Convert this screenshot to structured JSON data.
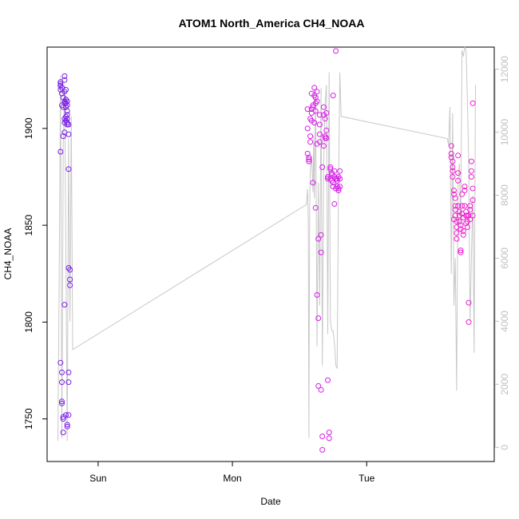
{
  "chart_data": {
    "type": "scatter",
    "title": "ATOM1 North_America CH4_NOAA",
    "xlabel": "Date",
    "ylabel": "CH4_NOAA",
    "x_ticks": [
      "Sun",
      "Mon",
      "Tue"
    ],
    "x_tick_positions": [
      1.0,
      2.0,
      3.0
    ],
    "xlim": [
      0.62,
      3.95
    ],
    "ylim": [
      1728,
      1942
    ],
    "y_ticks": [
      1750,
      1800,
      1850,
      1900
    ],
    "y2_ticks": [
      0,
      2000,
      4000,
      6000,
      8000,
      10000,
      12000
    ],
    "y2lim": [
      -450,
      12700
    ],
    "grid": false,
    "colors": {
      "axes": "#000000",
      "altitude_line": "#c8c8c8",
      "right_axis": "#bfbfbf",
      "cluster1_points": "#7a1ee6",
      "cluster2_points": "#d61ee6",
      "cluster3_points": "#f01ed0"
    },
    "series": [
      {
        "type": "scatter",
        "x": [
          0.72,
          0.72,
          0.72,
          0.73,
          0.72,
          0.73,
          0.73,
          0.72,
          0.72,
          0.73,
          0.73,
          0.73,
          0.73,
          0.74,
          0.74,
          0.74,
          0.75,
          0.75,
          0.75,
          0.76,
          0.75,
          0.76,
          0.76,
          0.76,
          0.77,
          0.77,
          0.77,
          0.77,
          0.77,
          0.76,
          0.76,
          0.75,
          0.75,
          0.74,
          0.74,
          0.74,
          0.75,
          0.75,
          0.75,
          0.77,
          0.77,
          0.78,
          0.78,
          0.78,
          0.78,
          0.79,
          0.79,
          0.79,
          0.78,
          0.78,
          0.78,
          0.77,
          0.76,
          0.77
        ],
        "y": [
          1924,
          1923,
          1922,
          1921,
          1920,
          1918,
          1912,
          1888,
          1779,
          1774,
          1769,
          1758,
          1759,
          1751,
          1750,
          1743,
          1809,
          1927,
          1925,
          1920,
          1919,
          1915,
          1913,
          1911,
          1914,
          1912,
          1909,
          1907,
          1905,
          1906,
          1904,
          1903,
          1898,
          1896,
          1911,
          1916,
          1913,
          1914,
          1905,
          1903,
          1902,
          1902,
          1897,
          1879,
          1828,
          1827,
          1822,
          1819,
          1774,
          1769,
          1752,
          1746,
          1752,
          1747
        ]
      },
      {
        "type": "scatter",
        "x": [
          2.56,
          2.56,
          2.56,
          2.57,
          2.57,
          2.57,
          2.58,
          2.58,
          2.58,
          2.59,
          2.59,
          2.59,
          2.59,
          2.6,
          2.6,
          2.6,
          2.61,
          2.61,
          2.61,
          2.62,
          2.62,
          2.62,
          2.62,
          2.63,
          2.63,
          2.63,
          2.63,
          2.64,
          2.64,
          2.64,
          2.65,
          2.65,
          2.65,
          2.65,
          2.66,
          2.66,
          2.66,
          2.67,
          2.67,
          2.67,
          2.68,
          2.68,
          2.68,
          2.69,
          2.69,
          2.69,
          2.7,
          2.7,
          2.7,
          2.71,
          2.71,
          2.71,
          2.72,
          2.72,
          2.73,
          2.73,
          2.73,
          2.74,
          2.74,
          2.74,
          2.75,
          2.75,
          2.75,
          2.76,
          2.76,
          2.76,
          2.77,
          2.77,
          2.77,
          2.78,
          2.78,
          2.78,
          2.79,
          2.79,
          2.79,
          2.8,
          2.8,
          2.8
        ],
        "y": [
          1910,
          1900,
          1887,
          1884,
          1885,
          1883,
          1896,
          1893,
          1905,
          1910,
          1908,
          1904,
          1918,
          1911,
          1912,
          1872,
          1921,
          1917,
          1903,
          1916,
          1913,
          1909,
          1859,
          1919,
          1914,
          1892,
          1814,
          1802,
          1767,
          1843,
          1907,
          1902,
          1897,
          1893,
          1845,
          1836,
          1765,
          1741,
          1734,
          1880,
          1907,
          1911,
          1891,
          1895,
          1905,
          1896,
          1899,
          1908,
          1895,
          1875,
          1874,
          1770,
          1743,
          1740,
          1874,
          1879,
          1880,
          1876,
          1877,
          1873,
          1872,
          1870,
          1917,
          1878,
          1875,
          1861,
          1869,
          1874,
          1940,
          1873,
          1874,
          1870,
          1868,
          1869,
          1875,
          1874,
          1870,
          1878
        ]
      },
      {
        "type": "scatter",
        "x": [
          3.63,
          3.63,
          3.63,
          3.64,
          3.64,
          3.64,
          3.64,
          3.65,
          3.65,
          3.65,
          3.66,
          3.66,
          3.66,
          3.66,
          3.67,
          3.67,
          3.67,
          3.67,
          3.68,
          3.68,
          3.68,
          3.68,
          3.69,
          3.69,
          3.69,
          3.7,
          3.7,
          3.7,
          3.7,
          3.71,
          3.71,
          3.71,
          3.72,
          3.72,
          3.72,
          3.73,
          3.73,
          3.73,
          3.74,
          3.74,
          3.74,
          3.75,
          3.75,
          3.75,
          3.76,
          3.76,
          3.76,
          3.77,
          3.77,
          3.77,
          3.78,
          3.78,
          3.78,
          3.79,
          3.79,
          3.79,
          3.79
        ],
        "y": [
          1891,
          1887,
          1885,
          1883,
          1880,
          1878,
          1875,
          1853,
          1868,
          1866,
          1864,
          1860,
          1858,
          1855,
          1852,
          1849,
          1846,
          1843,
          1886,
          1877,
          1873,
          1860,
          1857,
          1855,
          1852,
          1850,
          1848,
          1837,
          1836,
          1866,
          1860,
          1856,
          1854,
          1847,
          1845,
          1870,
          1868,
          1860,
          1857,
          1855,
          1851,
          1855,
          1852,
          1849,
          1810,
          1800,
          1855,
          1860,
          1858,
          1853,
          1883,
          1878,
          1875,
          1869,
          1863,
          1855,
          1913
        ]
      },
      {
        "type": "line",
        "name": "altitude",
        "x": [
          0.7,
          0.71,
          0.72,
          0.73,
          0.74,
          0.75,
          0.76,
          0.77,
          0.78,
          0.79,
          0.8,
          0.81,
          2.55,
          2.56,
          2.565,
          2.57,
          2.575,
          2.58,
          2.59,
          2.6,
          2.605,
          2.61,
          2.62,
          2.63,
          2.64,
          2.65,
          2.66,
          2.67,
          2.68,
          2.69,
          2.7,
          2.71,
          2.72,
          2.73,
          2.74,
          2.75,
          2.76,
          2.77,
          2.78,
          2.79,
          2.8,
          2.81,
          3.6,
          3.61,
          3.62,
          3.63,
          3.635,
          3.64,
          3.65,
          3.66,
          3.67,
          3.68,
          3.69,
          3.7,
          3.71,
          3.72,
          3.73,
          3.74,
          3.75,
          3.76,
          3.77,
          3.78,
          3.79,
          3.8,
          3.81
        ],
        "y": [
          200,
          5200,
          11800,
          300,
          9500,
          11500,
          6200,
          200,
          9800,
          4000,
          10500,
          3100,
          7700,
          8200,
          7200,
          300,
          7500,
          8800,
          9200,
          8100,
          9900,
          7900,
          11400,
          3200,
          8400,
          4500,
          11400,
          2600,
          9000,
          10900,
          11500,
          3600,
          11900,
          4000,
          3700,
          3700,
          3300,
          2600,
          2500,
          8000,
          11900,
          10500,
          9800,
          9600,
          10800,
          5500,
          7800,
          10600,
          4500,
          6000,
          1800,
          8500,
          9000,
          7000,
          12600,
          12400,
          12700,
          12600,
          11000,
          9000,
          4000,
          6000,
          8000,
          3000,
          11500
        ]
      }
    ]
  }
}
